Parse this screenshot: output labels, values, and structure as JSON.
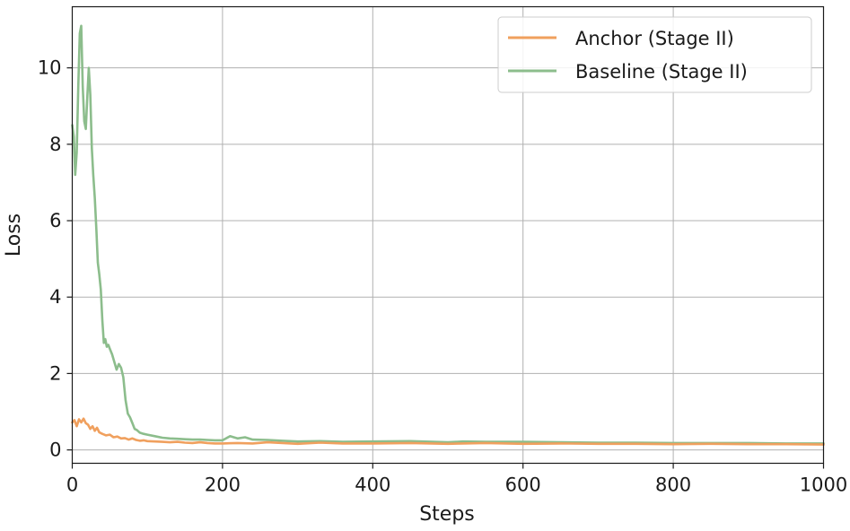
{
  "chart_data": {
    "type": "line",
    "title": "",
    "xlabel": "Steps",
    "ylabel": "Loss",
    "xlim": [
      0,
      1000
    ],
    "ylim": [
      -0.35,
      11.6
    ],
    "xticks": [
      0,
      200,
      400,
      600,
      800,
      1000
    ],
    "yticks": [
      0,
      2,
      4,
      6,
      8,
      10
    ],
    "xtick_labels": [
      "0",
      "200",
      "400",
      "600",
      "800",
      "1000"
    ],
    "ytick_labels": [
      "0",
      "2",
      "4",
      "6",
      "8",
      "10"
    ],
    "grid": true,
    "legend_position": "top-right",
    "series": [
      {
        "name": "Anchor (Stage II)",
        "color": "#f0a05e",
        "x": [
          0,
          3,
          6,
          9,
          12,
          15,
          18,
          21,
          24,
          27,
          30,
          33,
          36,
          40,
          45,
          50,
          55,
          60,
          65,
          70,
          75,
          80,
          85,
          90,
          95,
          100,
          110,
          120,
          130,
          140,
          150,
          160,
          170,
          180,
          190,
          200,
          220,
          240,
          260,
          280,
          300,
          330,
          360,
          400,
          450,
          500,
          520,
          550,
          600,
          650,
          700,
          750,
          800,
          850,
          900,
          950,
          1000
        ],
        "y": [
          0.72,
          0.78,
          0.62,
          0.8,
          0.72,
          0.82,
          0.7,
          0.66,
          0.55,
          0.62,
          0.5,
          0.58,
          0.46,
          0.42,
          0.38,
          0.4,
          0.33,
          0.35,
          0.3,
          0.31,
          0.27,
          0.3,
          0.26,
          0.24,
          0.25,
          0.23,
          0.22,
          0.21,
          0.2,
          0.21,
          0.19,
          0.18,
          0.2,
          0.18,
          0.17,
          0.17,
          0.18,
          0.17,
          0.2,
          0.18,
          0.16,
          0.19,
          0.17,
          0.17,
          0.18,
          0.16,
          0.17,
          0.18,
          0.16,
          0.17,
          0.16,
          0.16,
          0.15,
          0.16,
          0.15,
          0.15,
          0.14
        ]
      },
      {
        "name": "Baseline (Stage II)",
        "color": "#8cbd8c",
        "x": [
          0,
          2,
          4,
          6,
          8,
          10,
          12,
          14,
          16,
          18,
          20,
          22,
          24,
          26,
          28,
          30,
          32,
          34,
          36,
          38,
          40,
          42,
          44,
          46,
          48,
          50,
          53,
          56,
          59,
          62,
          65,
          68,
          71,
          74,
          77,
          80,
          83,
          86,
          90,
          95,
          100,
          110,
          120,
          130,
          140,
          150,
          160,
          170,
          180,
          190,
          200,
          210,
          220,
          230,
          240,
          260,
          280,
          300,
          330,
          360,
          400,
          450,
          500,
          520,
          550,
          600,
          650,
          700,
          750,
          800,
          850,
          900,
          950,
          1000
        ],
        "y": [
          8.5,
          8.2,
          7.2,
          7.8,
          9.5,
          10.9,
          11.1,
          9.5,
          8.6,
          8.4,
          9.2,
          10.0,
          9.3,
          7.9,
          7.2,
          6.6,
          5.8,
          4.9,
          4.6,
          4.2,
          3.4,
          2.8,
          2.9,
          2.7,
          2.75,
          2.65,
          2.5,
          2.3,
          2.1,
          2.25,
          2.15,
          1.9,
          1.3,
          0.95,
          0.85,
          0.7,
          0.55,
          0.52,
          0.45,
          0.42,
          0.4,
          0.36,
          0.32,
          0.3,
          0.29,
          0.28,
          0.27,
          0.27,
          0.26,
          0.25,
          0.25,
          0.36,
          0.3,
          0.33,
          0.27,
          0.26,
          0.24,
          0.22,
          0.23,
          0.21,
          0.22,
          0.23,
          0.2,
          0.22,
          0.21,
          0.21,
          0.2,
          0.19,
          0.19,
          0.18,
          0.18,
          0.18,
          0.17,
          0.17
        ]
      }
    ]
  }
}
